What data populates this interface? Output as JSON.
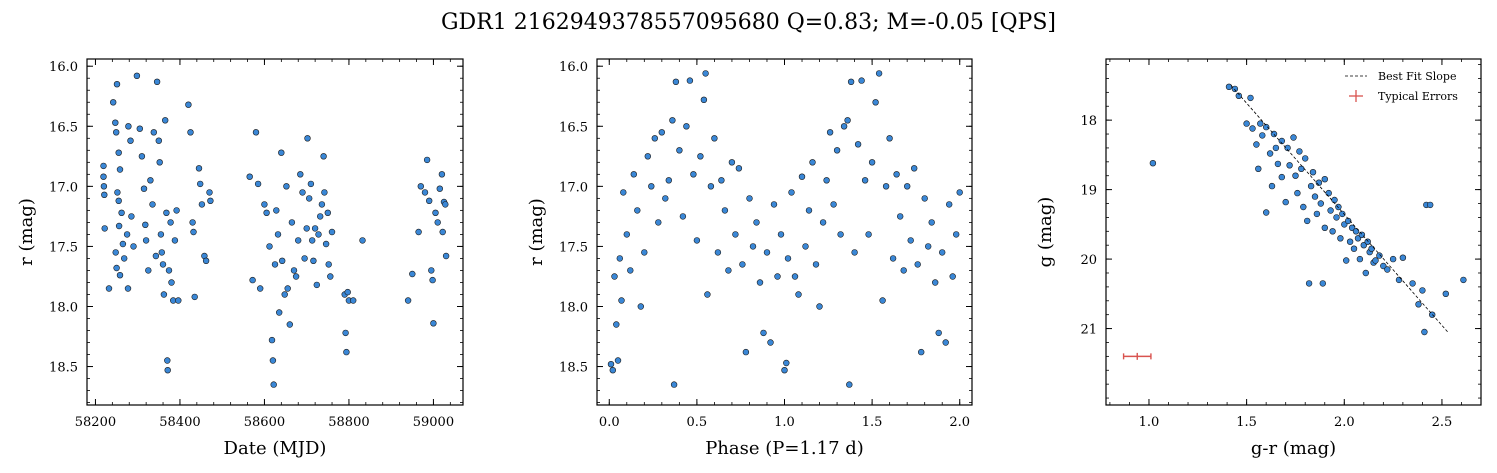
{
  "title": "GDR1 2162949378557095680  Q=0.83; M=-0.05 [QPS]",
  "colors": {
    "point": "#3a87d6",
    "edge": "#1a1a1a",
    "fit": "#000000",
    "error": "#d9534f"
  },
  "chart_data": [
    {
      "type": "scatter",
      "xlabel": "Date (MJD)",
      "ylabel": "r (mag)",
      "xlim": [
        58180,
        59070
      ],
      "ylim": [
        18.82,
        15.94
      ],
      "y_inverted": true,
      "xticks": [
        58200,
        58400,
        58600,
        58800,
        59000
      ],
      "yticks": [
        16.0,
        16.5,
        17.0,
        17.5,
        18.0,
        18.5
      ],
      "xtick_labels": [
        "58200",
        "58400",
        "58600",
        "58800",
        "59000"
      ],
      "ytick_labels": [
        "16.0",
        "16.5",
        "17.0",
        "17.5",
        "18.0",
        "18.5"
      ],
      "points": [
        [
          58219,
          16.83
        ],
        [
          58219,
          16.92
        ],
        [
          58220,
          17.0
        ],
        [
          58221,
          17.07
        ],
        [
          58222,
          17.35
        ],
        [
          58232,
          17.85
        ],
        [
          58242,
          16.3
        ],
        [
          58247,
          16.47
        ],
        [
          58251,
          16.15
        ],
        [
          58249,
          16.55
        ],
        [
          58255,
          16.72
        ],
        [
          58258,
          16.86
        ],
        [
          58252,
          17.05
        ],
        [
          58255,
          17.12
        ],
        [
          58262,
          17.22
        ],
        [
          58256,
          17.33
        ],
        [
          58248,
          17.55
        ],
        [
          58250,
          17.68
        ],
        [
          58258,
          17.74
        ],
        [
          58265,
          17.48
        ],
        [
          58268,
          17.6
        ],
        [
          58275,
          17.4
        ],
        [
          58277,
          17.85
        ],
        [
          58278,
          16.5
        ],
        [
          58283,
          16.62
        ],
        [
          58285,
          17.25
        ],
        [
          58290,
          17.5
        ],
        [
          58298,
          16.08
        ],
        [
          58305,
          16.52
        ],
        [
          58310,
          16.75
        ],
        [
          58315,
          17.02
        ],
        [
          58318,
          17.32
        ],
        [
          58320,
          17.45
        ],
        [
          58325,
          17.7
        ],
        [
          58330,
          16.95
        ],
        [
          58335,
          17.15
        ],
        [
          58338,
          16.55
        ],
        [
          58343,
          17.58
        ],
        [
          58346,
          16.13
        ],
        [
          58350,
          16.62
        ],
        [
          58352,
          16.8
        ],
        [
          58355,
          17.4
        ],
        [
          58357,
          17.55
        ],
        [
          58360,
          17.65
        ],
        [
          58362,
          17.9
        ],
        [
          58365,
          16.45
        ],
        [
          58368,
          17.22
        ],
        [
          58370,
          18.45
        ],
        [
          58371,
          18.53
        ],
        [
          58374,
          17.7
        ],
        [
          58378,
          17.3
        ],
        [
          58380,
          17.8
        ],
        [
          58384,
          17.95
        ],
        [
          58388,
          17.45
        ],
        [
          58392,
          17.2
        ],
        [
          58396,
          17.95
        ],
        [
          58420,
          16.32
        ],
        [
          58425,
          16.55
        ],
        [
          58430,
          17.3
        ],
        [
          58432,
          17.38
        ],
        [
          58435,
          17.92
        ],
        [
          58445,
          16.85
        ],
        [
          58448,
          16.98
        ],
        [
          58452,
          17.15
        ],
        [
          58458,
          17.58
        ],
        [
          58462,
          17.62
        ],
        [
          58470,
          17.05
        ],
        [
          58472,
          17.12
        ],
        [
          58565,
          16.92
        ],
        [
          58572,
          17.78
        ],
        [
          58580,
          16.55
        ],
        [
          58585,
          16.98
        ],
        [
          58590,
          17.85
        ],
        [
          58600,
          17.15
        ],
        [
          58605,
          17.22
        ],
        [
          58612,
          17.5
        ],
        [
          58618,
          18.28
        ],
        [
          58620,
          18.45
        ],
        [
          58622,
          18.65
        ],
        [
          58625,
          17.65
        ],
        [
          58628,
          17.2
        ],
        [
          58632,
          17.4
        ],
        [
          58635,
          18.05
        ],
        [
          58640,
          16.72
        ],
        [
          58642,
          17.62
        ],
        [
          58648,
          17.9
        ],
        [
          58652,
          17.0
        ],
        [
          58655,
          17.85
        ],
        [
          58660,
          18.15
        ],
        [
          58665,
          17.3
        ],
        [
          58670,
          17.7
        ],
        [
          58675,
          17.75
        ],
        [
          58680,
          17.45
        ],
        [
          58685,
          16.9
        ],
        [
          58690,
          17.05
        ],
        [
          58695,
          17.6
        ],
        [
          58700,
          17.35
        ],
        [
          58702,
          16.6
        ],
        [
          58706,
          17.1
        ],
        [
          58710,
          16.98
        ],
        [
          58713,
          17.45
        ],
        [
          58716,
          17.62
        ],
        [
          58720,
          17.35
        ],
        [
          58724,
          17.82
        ],
        [
          58728,
          17.4
        ],
        [
          58732,
          17.25
        ],
        [
          58736,
          17.15
        ],
        [
          58740,
          16.75
        ],
        [
          58742,
          17.05
        ],
        [
          58746,
          17.48
        ],
        [
          58750,
          17.22
        ],
        [
          58752,
          17.65
        ],
        [
          58756,
          17.75
        ],
        [
          58760,
          17.38
        ],
        [
          58790,
          17.9
        ],
        [
          58792,
          18.22
        ],
        [
          58794,
          18.38
        ],
        [
          58797,
          17.88
        ],
        [
          58800,
          17.95
        ],
        [
          58810,
          17.95
        ],
        [
          58832,
          17.45
        ],
        [
          58940,
          17.95
        ],
        [
          58950,
          17.73
        ],
        [
          58965,
          17.38
        ],
        [
          58970,
          17.0
        ],
        [
          58980,
          17.05
        ],
        [
          58985,
          16.78
        ],
        [
          58990,
          17.12
        ],
        [
          58995,
          17.7
        ],
        [
          58998,
          17.78
        ],
        [
          59000,
          18.14
        ],
        [
          59005,
          17.22
        ],
        [
          59010,
          17.3
        ],
        [
          59015,
          17.02
        ],
        [
          59020,
          16.9
        ],
        [
          59022,
          17.38
        ],
        [
          59025,
          17.13
        ],
        [
          59028,
          17.15
        ],
        [
          59030,
          17.58
        ]
      ]
    },
    {
      "type": "scatter",
      "xlabel": "Phase (P=1.17 d)",
      "ylabel": "r (mag)",
      "xlim": [
        -0.07,
        2.07
      ],
      "ylim": [
        18.82,
        15.94
      ],
      "y_inverted": true,
      "xticks": [
        0.0,
        0.5,
        1.0,
        1.5,
        2.0
      ],
      "yticks": [
        16.0,
        16.5,
        17.0,
        17.5,
        18.0,
        18.5
      ],
      "xtick_labels": [
        "0.0",
        "0.5",
        "1.0",
        "1.5",
        "2.0"
      ],
      "ytick_labels": [
        "16.0",
        "16.5",
        "17.0",
        "17.5",
        "18.0",
        "18.5"
      ],
      "points": [
        [
          0.01,
          18.48
        ],
        [
          0.02,
          18.53
        ],
        [
          0.03,
          17.75
        ],
        [
          0.04,
          18.15
        ],
        [
          0.05,
          18.45
        ],
        [
          0.06,
          17.6
        ],
        [
          0.07,
          17.95
        ],
        [
          0.08,
          17.05
        ],
        [
          0.1,
          17.4
        ],
        [
          0.12,
          17.7
        ],
        [
          0.14,
          16.9
        ],
        [
          0.16,
          17.2
        ],
        [
          0.18,
          18.0
        ],
        [
          0.2,
          17.55
        ],
        [
          0.22,
          16.75
        ],
        [
          0.24,
          17.0
        ],
        [
          0.26,
          16.6
        ],
        [
          0.28,
          17.3
        ],
        [
          0.3,
          16.55
        ],
        [
          0.32,
          17.1
        ],
        [
          0.34,
          16.95
        ],
        [
          0.36,
          16.45
        ],
        [
          0.37,
          18.65
        ],
        [
          0.38,
          16.13
        ],
        [
          0.4,
          16.7
        ],
        [
          0.42,
          17.25
        ],
        [
          0.44,
          16.5
        ],
        [
          0.46,
          16.12
        ],
        [
          0.48,
          16.9
        ],
        [
          0.5,
          17.45
        ],
        [
          0.52,
          16.75
        ],
        [
          0.54,
          16.28
        ],
        [
          0.55,
          16.06
        ],
        [
          0.56,
          17.9
        ],
        [
          0.58,
          17.0
        ],
        [
          0.6,
          16.6
        ],
        [
          0.62,
          17.55
        ],
        [
          0.64,
          16.95
        ],
        [
          0.66,
          17.2
        ],
        [
          0.68,
          17.7
        ],
        [
          0.7,
          16.8
        ],
        [
          0.72,
          17.4
        ],
        [
          0.74,
          16.85
        ],
        [
          0.76,
          17.65
        ],
        [
          0.78,
          18.38
        ],
        [
          0.8,
          17.1
        ],
        [
          0.82,
          17.5
        ],
        [
          0.84,
          17.3
        ],
        [
          0.86,
          17.8
        ],
        [
          0.88,
          18.22
        ],
        [
          0.9,
          17.55
        ],
        [
          0.92,
          18.3
        ],
        [
          0.94,
          17.15
        ],
        [
          0.96,
          17.75
        ],
        [
          0.98,
          17.4
        ],
        [
          1.0,
          18.53
        ],
        [
          1.01,
          18.47
        ],
        [
          1.02,
          17.6
        ],
        [
          1.04,
          17.05
        ],
        [
          1.06,
          17.75
        ],
        [
          1.08,
          17.9
        ],
        [
          1.1,
          16.92
        ],
        [
          1.12,
          17.5
        ],
        [
          1.14,
          17.2
        ],
        [
          1.16,
          16.8
        ],
        [
          1.18,
          17.65
        ],
        [
          1.2,
          18.0
        ],
        [
          1.22,
          17.3
        ],
        [
          1.24,
          16.95
        ],
        [
          1.26,
          16.55
        ],
        [
          1.28,
          17.15
        ],
        [
          1.3,
          16.7
        ],
        [
          1.32,
          17.4
        ],
        [
          1.34,
          16.5
        ],
        [
          1.36,
          16.45
        ],
        [
          1.37,
          18.65
        ],
        [
          1.38,
          16.13
        ],
        [
          1.4,
          17.55
        ],
        [
          1.42,
          16.65
        ],
        [
          1.44,
          16.12
        ],
        [
          1.46,
          16.95
        ],
        [
          1.48,
          17.4
        ],
        [
          1.5,
          16.8
        ],
        [
          1.52,
          16.3
        ],
        [
          1.54,
          16.06
        ],
        [
          1.56,
          17.95
        ],
        [
          1.58,
          17.0
        ],
        [
          1.6,
          16.6
        ],
        [
          1.62,
          17.6
        ],
        [
          1.64,
          16.9
        ],
        [
          1.66,
          17.25
        ],
        [
          1.68,
          17.7
        ],
        [
          1.7,
          17.0
        ],
        [
          1.72,
          17.45
        ],
        [
          1.74,
          16.85
        ],
        [
          1.76,
          17.65
        ],
        [
          1.78,
          18.38
        ],
        [
          1.8,
          17.1
        ],
        [
          1.82,
          17.5
        ],
        [
          1.84,
          17.3
        ],
        [
          1.86,
          17.8
        ],
        [
          1.88,
          18.22
        ],
        [
          1.9,
          17.55
        ],
        [
          1.92,
          18.3
        ],
        [
          1.94,
          17.15
        ],
        [
          1.96,
          17.75
        ],
        [
          1.98,
          17.4
        ],
        [
          2.0,
          17.05
        ]
      ]
    },
    {
      "type": "scatter",
      "xlabel": "g-r (mag)",
      "ylabel": "g (mag)",
      "xlim": [
        0.78,
        2.7
      ],
      "ylim": [
        22.1,
        17.12
      ],
      "y_inverted": true,
      "xticks": [
        1.0,
        1.5,
        2.0,
        2.5
      ],
      "yticks": [
        18,
        19,
        20,
        21
      ],
      "xtick_labels": [
        "1.0",
        "1.5",
        "2.0",
        "2.5"
      ],
      "ytick_labels": [
        "18",
        "19",
        "20",
        "21"
      ],
      "legend": {
        "position": "top-right",
        "entries": [
          "Best Fit Slope",
          "Typical Errors"
        ]
      },
      "fit_line": {
        "x": [
          1.42,
          2.53
        ],
        "y": [
          17.5,
          21.05
        ]
      },
      "typical_error": {
        "x": 0.94,
        "y": 21.4,
        "xerr": 0.07,
        "yerr": 0.05
      },
      "points": [
        [
          1.02,
          18.62
        ],
        [
          1.41,
          17.52
        ],
        [
          1.44,
          17.55
        ],
        [
          1.46,
          17.65
        ],
        [
          1.5,
          18.05
        ],
        [
          1.52,
          17.68
        ],
        [
          1.53,
          18.12
        ],
        [
          1.55,
          18.35
        ],
        [
          1.56,
          18.7
        ],
        [
          1.57,
          18.05
        ],
        [
          1.58,
          18.22
        ],
        [
          1.6,
          18.1
        ],
        [
          1.6,
          19.33
        ],
        [
          1.62,
          18.48
        ],
        [
          1.63,
          18.95
        ],
        [
          1.64,
          18.2
        ],
        [
          1.65,
          18.4
        ],
        [
          1.66,
          18.63
        ],
        [
          1.68,
          18.3
        ],
        [
          1.68,
          18.82
        ],
        [
          1.7,
          19.18
        ],
        [
          1.71,
          18.4
        ],
        [
          1.72,
          18.65
        ],
        [
          1.74,
          18.25
        ],
        [
          1.75,
          18.8
        ],
        [
          1.76,
          19.05
        ],
        [
          1.77,
          18.45
        ],
        [
          1.78,
          18.7
        ],
        [
          1.79,
          19.25
        ],
        [
          1.8,
          18.55
        ],
        [
          1.81,
          19.45
        ],
        [
          1.82,
          20.35
        ],
        [
          1.83,
          18.95
        ],
        [
          1.84,
          18.75
        ],
        [
          1.85,
          19.1
        ],
        [
          1.86,
          19.35
        ],
        [
          1.87,
          18.9
        ],
        [
          1.88,
          19.2
        ],
        [
          1.89,
          20.35
        ],
        [
          1.9,
          18.85
        ],
        [
          1.9,
          19.55
        ],
        [
          1.92,
          19.05
        ],
        [
          1.93,
          19.3
        ],
        [
          1.94,
          19.6
        ],
        [
          1.95,
          19.15
        ],
        [
          1.96,
          19.4
        ],
        [
          1.97,
          19.25
        ],
        [
          1.98,
          19.7
        ],
        [
          1.99,
          19.35
        ],
        [
          2.0,
          19.5
        ],
        [
          2.01,
          20.02
        ],
        [
          2.02,
          19.45
        ],
        [
          2.03,
          19.75
        ],
        [
          2.04,
          19.55
        ],
        [
          2.05,
          19.85
        ],
        [
          2.06,
          19.6
        ],
        [
          2.07,
          19.7
        ],
        [
          2.08,
          20.0
        ],
        [
          2.09,
          19.65
        ],
        [
          2.1,
          19.8
        ],
        [
          2.11,
          20.2
        ],
        [
          2.12,
          19.75
        ],
        [
          2.13,
          19.9
        ],
        [
          2.14,
          19.85
        ],
        [
          2.15,
          20.05
        ],
        [
          2.16,
          20.02
        ],
        [
          2.18,
          19.95
        ],
        [
          2.2,
          20.1
        ],
        [
          2.22,
          20.15
        ],
        [
          2.25,
          20.0
        ],
        [
          2.28,
          20.3
        ],
        [
          2.3,
          19.98
        ],
        [
          2.35,
          20.35
        ],
        [
          2.38,
          20.65
        ],
        [
          2.4,
          20.45
        ],
        [
          2.41,
          21.05
        ],
        [
          2.42,
          19.22
        ],
        [
          2.44,
          19.22
        ],
        [
          2.45,
          20.8
        ],
        [
          2.52,
          20.5
        ],
        [
          2.61,
          20.3
        ]
      ]
    }
  ]
}
